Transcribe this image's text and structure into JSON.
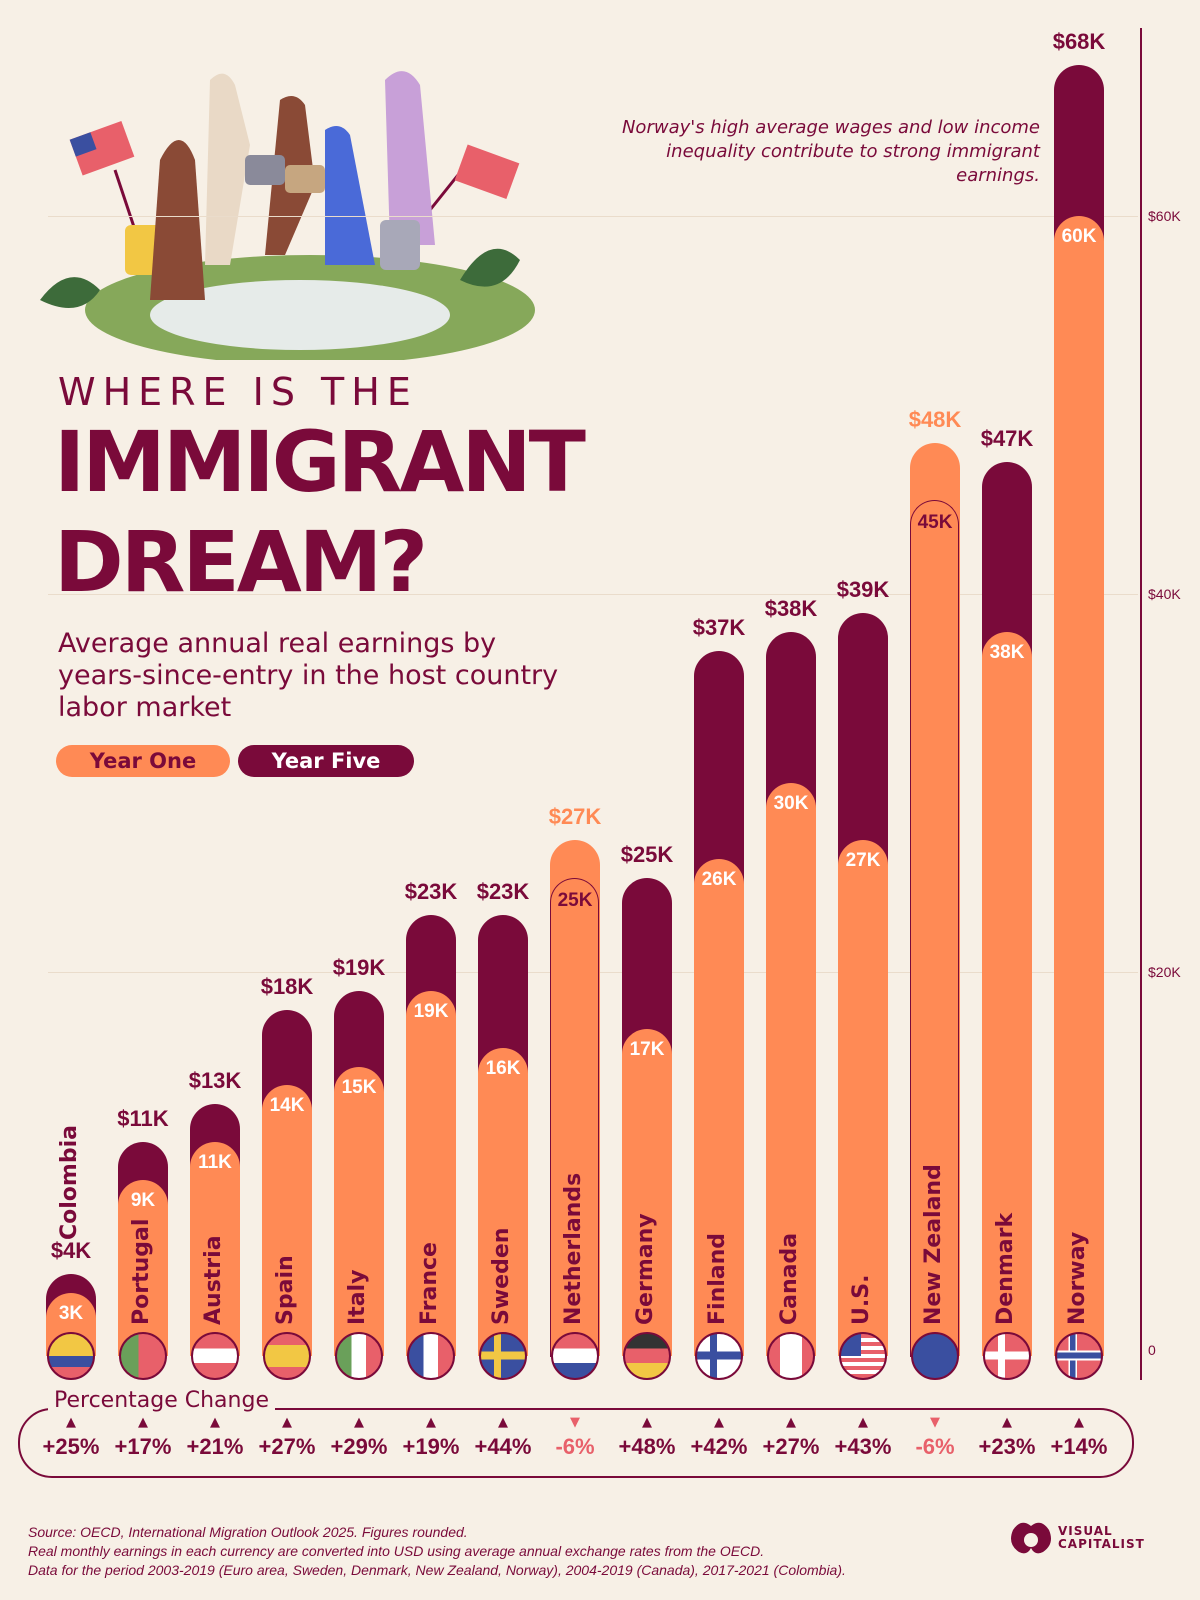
{
  "header": {
    "kicker": "WHERE IS THE",
    "title_line1": "IMMIGRANT",
    "title_line2": "DREAM?",
    "subtitle": "Average annual real earnings by years-since-entry in the host country labor market"
  },
  "annotation": "Norway's high average wages and low income inequality contribute to strong immigrant earnings.",
  "colors": {
    "year_one": "#ff8a55",
    "year_five": "#7a0a3a",
    "background": "#f7f0e6",
    "negative": "#e8606a"
  },
  "chart_data": {
    "type": "bar",
    "legend": [
      "Year One",
      "Year Five"
    ],
    "legend_placement": "left",
    "ylim": [
      0,
      70000
    ],
    "y_ticks": [
      "0",
      "$20K",
      "$40K",
      "$60K"
    ],
    "y_tick_values": [
      0,
      20000,
      40000,
      60000
    ],
    "grid": true,
    "categories": [
      "Colombia",
      "Portugal",
      "Austria",
      "Spain",
      "Italy",
      "France",
      "Sweden",
      "Netherlands",
      "Germany",
      "Finland",
      "Canada",
      "U.S.",
      "New Zealand",
      "Denmark",
      "Norway"
    ],
    "series": [
      {
        "name": "Year One",
        "values": [
          3,
          9,
          11,
          14,
          15,
          19,
          16,
          27,
          17,
          26,
          30,
          27,
          48,
          38,
          60
        ],
        "labels": [
          "3K",
          "9K",
          "11K",
          "14K",
          "15K",
          "19K",
          "16K",
          "$27K",
          "17K",
          "26K",
          "30K",
          "27K",
          "$48K",
          "38K",
          "60K"
        ]
      },
      {
        "name": "Year Five",
        "values": [
          4,
          11,
          13,
          18,
          19,
          23,
          23,
          25,
          25,
          37,
          38,
          39,
          45,
          47,
          68
        ],
        "labels": [
          "$4K",
          "$11K",
          "$13K",
          "$18K",
          "$19K",
          "$23K",
          "$23K",
          "25K",
          "$25K",
          "$37K",
          "$38K",
          "$39K",
          "45K",
          "$47K",
          "$68K"
        ]
      }
    ],
    "units": "thousand USD",
    "percentage_change_title": "Percentage Change",
    "percentage_change": [
      "+25%",
      "+17%",
      "+21%",
      "+27%",
      "+29%",
      "+19%",
      "+44%",
      "-6%",
      "+48%",
      "+42%",
      "+27%",
      "+43%",
      "-6%",
      "+23%",
      "+14%"
    ]
  },
  "footer": {
    "source": "Source: OECD, International Migration Outlook 2025. Figures rounded.",
    "note1": "Real monthly earnings in each currency are converted into USD using average annual exchange rates from the OECD.",
    "note2": "Data for the period 2003-2019 (Euro area, Sweden, Denmark, New Zealand, Norway), 2004-2019 (Canada), 2017-2021 (Colombia).",
    "brand": "VISUAL CAPITALIST"
  }
}
